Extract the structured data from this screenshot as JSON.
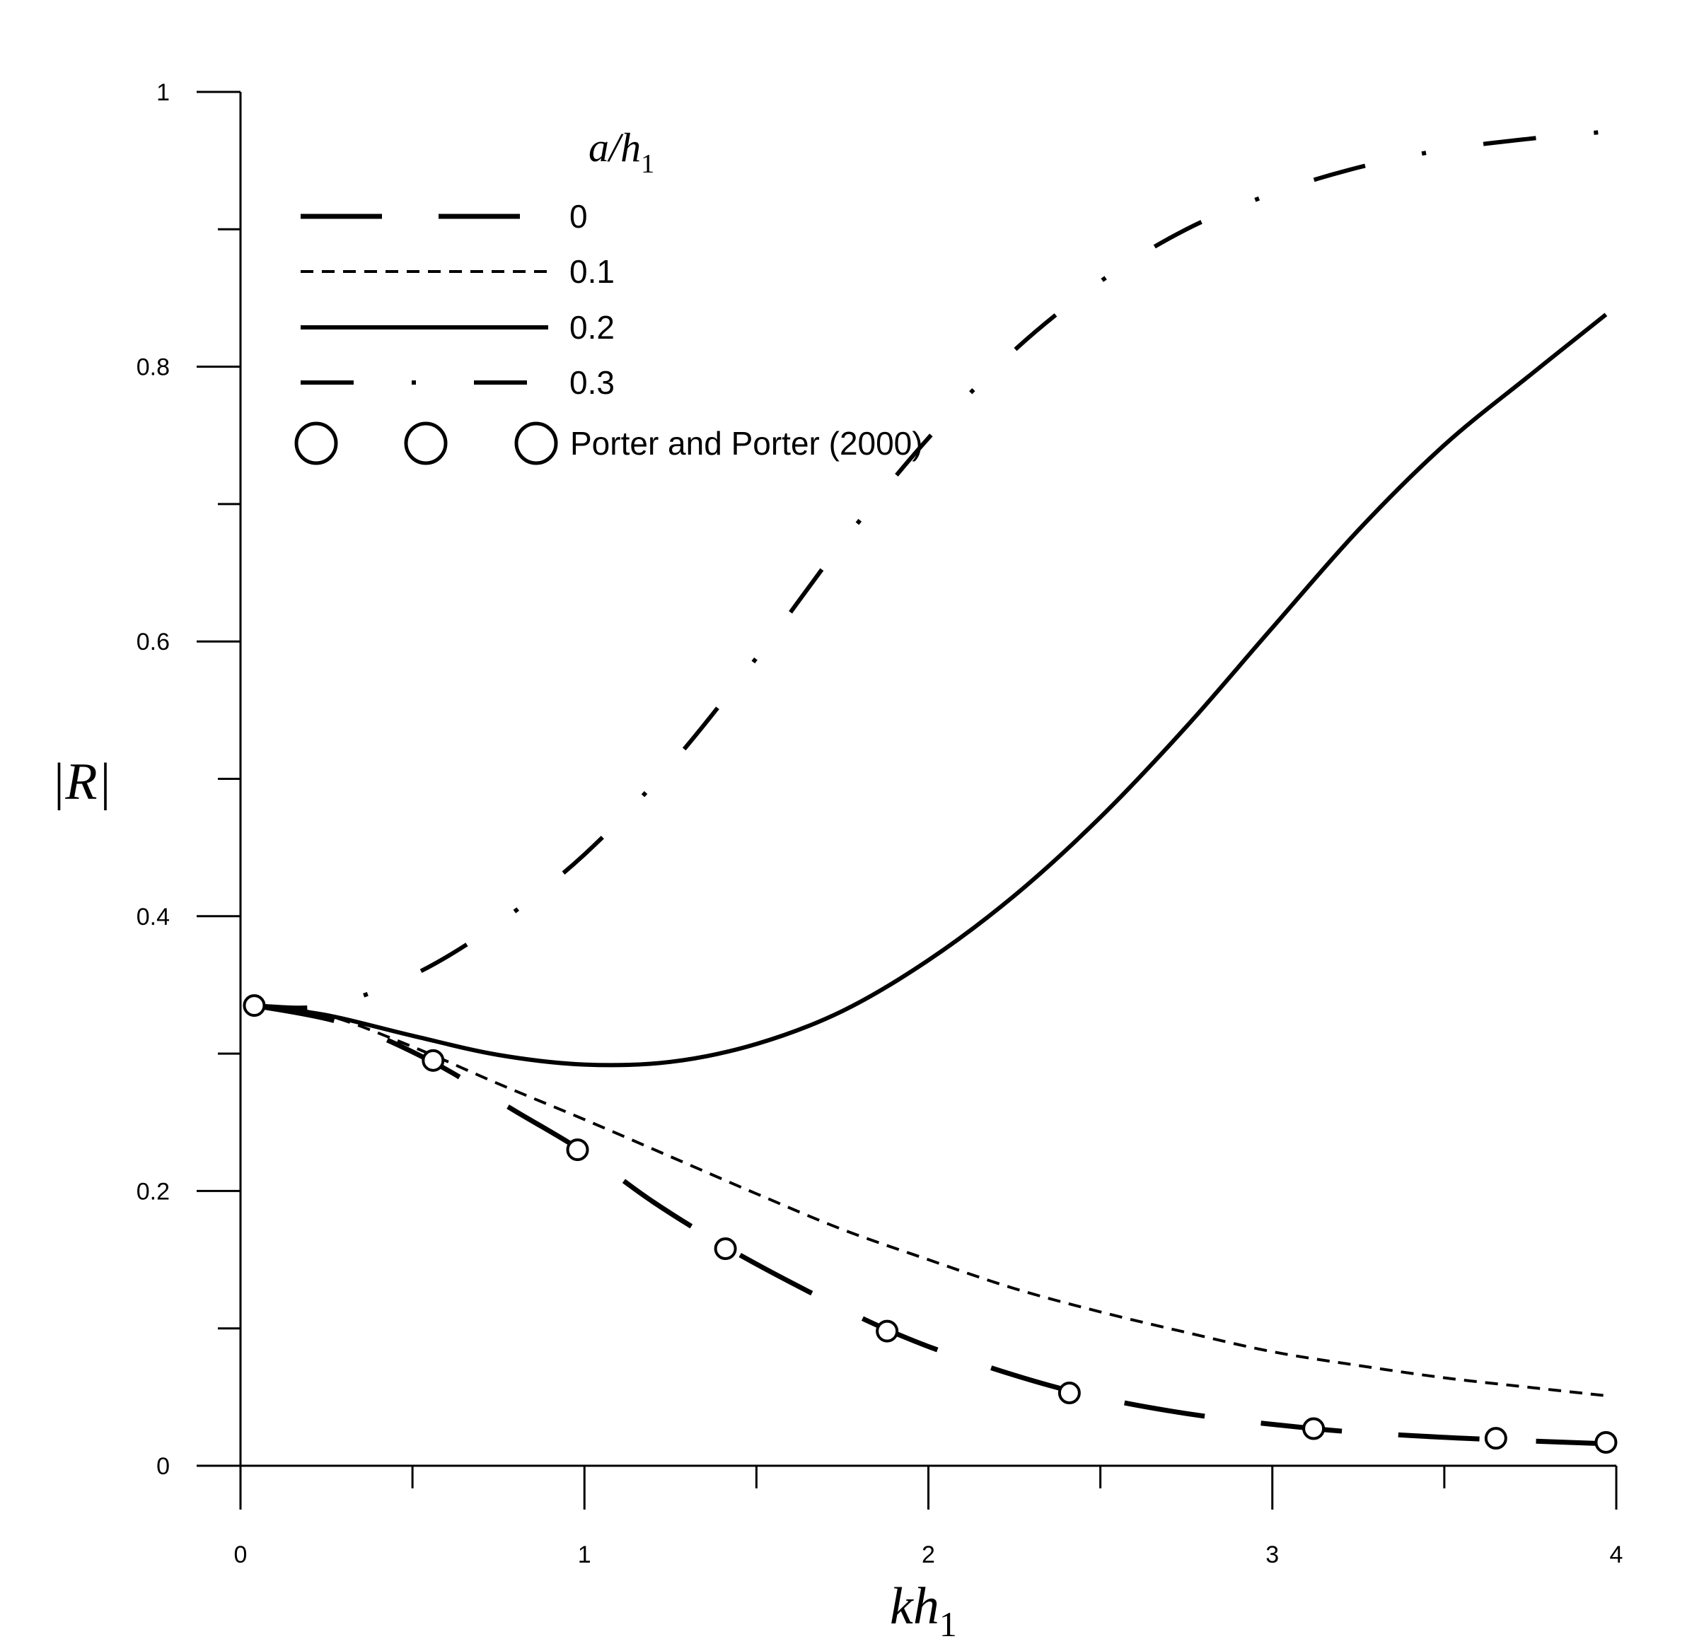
{
  "chart_data": {
    "type": "line",
    "xlabel": {
      "main": "kh",
      "sub": "1"
    },
    "ylabel": "|R|",
    "xlim": [
      0,
      4
    ],
    "ylim": [
      0,
      1
    ],
    "x_ticks": [
      0,
      1,
      2,
      3,
      4
    ],
    "x_tick_labels": [
      "0",
      "1",
      "2",
      "3",
      "4"
    ],
    "x_minor_ticks": [
      0.5,
      1.5,
      2.5,
      3.5
    ],
    "y_ticks": [
      0,
      0.2,
      0.4,
      0.6,
      0.8,
      1
    ],
    "y_tick_labels": [
      "0",
      "0.2",
      "0.4",
      "0.6",
      "0.8",
      "1"
    ],
    "y_minor_ticks": [
      0.1,
      0.3,
      0.5,
      0.7,
      0.9
    ],
    "grid": false,
    "legend": {
      "placement": "top-left",
      "title": {
        "main": "a/h",
        "sub": "1"
      },
      "entries": [
        "0",
        "0.1",
        "0.2",
        "0.3",
        "Porter and Porter (2000)"
      ]
    },
    "series": [
      {
        "name": "0",
        "style": "long-dash",
        "x": [
          0.04,
          0.3,
          0.55,
          0.8,
          1.0,
          1.2,
          1.42,
          1.65,
          1.88,
          2.1,
          2.42,
          2.75,
          3.12,
          3.4,
          3.65,
          3.97
        ],
        "y": [
          0.335,
          0.322,
          0.295,
          0.258,
          0.228,
          0.192,
          0.158,
          0.127,
          0.099,
          0.078,
          0.054,
          0.038,
          0.027,
          0.022,
          0.019,
          0.016
        ]
      },
      {
        "name": "0.1",
        "style": "short-dash",
        "x": [
          0.04,
          0.25,
          0.5,
          0.75,
          1.0,
          1.25,
          1.5,
          1.75,
          2.0,
          2.25,
          2.5,
          2.75,
          3.0,
          3.25,
          3.5,
          3.75,
          3.97
        ],
        "y": [
          0.335,
          0.328,
          0.305,
          0.278,
          0.252,
          0.225,
          0.198,
          0.172,
          0.15,
          0.129,
          0.112,
          0.097,
          0.083,
          0.073,
          0.064,
          0.057,
          0.051
        ]
      },
      {
        "name": "0.2",
        "style": "solid",
        "x": [
          0.04,
          0.25,
          0.5,
          0.75,
          1.0,
          1.25,
          1.5,
          1.75,
          2.0,
          2.25,
          2.5,
          2.75,
          3.0,
          3.25,
          3.5,
          3.75,
          3.97
        ],
        "y": [
          0.335,
          0.328,
          0.313,
          0.299,
          0.292,
          0.294,
          0.307,
          0.331,
          0.368,
          0.415,
          0.472,
          0.538,
          0.61,
          0.681,
          0.743,
          0.794,
          0.838
        ]
      },
      {
        "name": "0.3",
        "style": "dash-dot",
        "x": [
          0.04,
          0.25,
          0.5,
          0.75,
          1.0,
          1.25,
          1.5,
          1.75,
          2.0,
          2.25,
          2.5,
          2.75,
          3.0,
          3.25,
          3.5,
          3.75,
          3.97
        ],
        "y": [
          0.335,
          0.335,
          0.357,
          0.395,
          0.445,
          0.51,
          0.588,
          0.672,
          0.748,
          0.812,
          0.862,
          0.9,
          0.926,
          0.945,
          0.958,
          0.966,
          0.971
        ]
      }
    ],
    "reference_points": {
      "name": "Porter and Porter (2000)",
      "x": [
        0.04,
        0.56,
        0.98,
        1.41,
        1.88,
        2.41,
        3.12,
        3.65,
        3.97
      ],
      "y": [
        0.335,
        0.295,
        0.23,
        0.158,
        0.098,
        0.053,
        0.027,
        0.02,
        0.017
      ]
    }
  }
}
